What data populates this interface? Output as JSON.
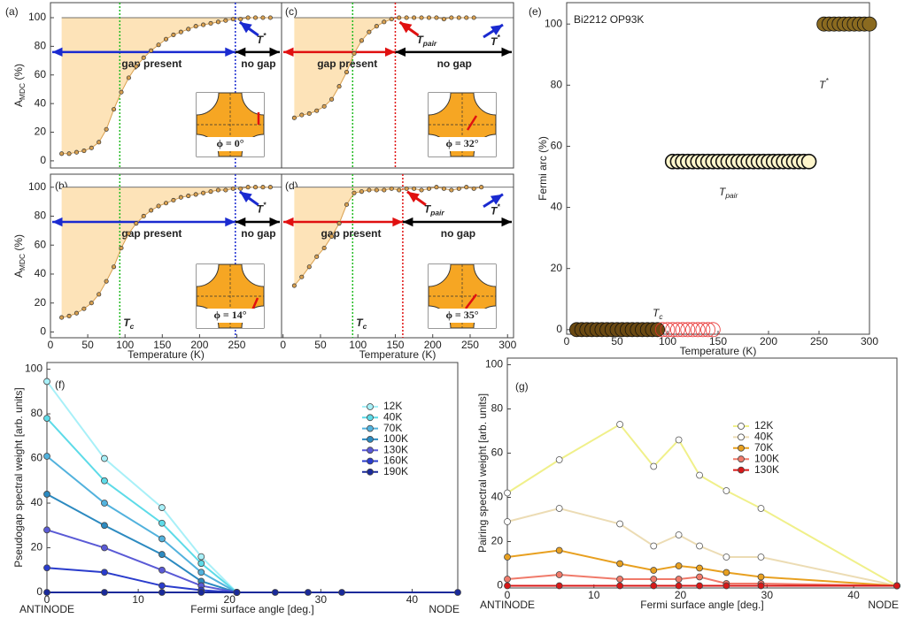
{
  "chart_data": [
    {
      "type": "line",
      "panel_label": "(a)",
      "ylabel": [
        "A",
        "MDC",
        " (%)"
      ],
      "x": [
        15,
        25,
        35,
        45,
        55,
        65,
        75,
        85,
        95,
        105,
        115,
        125,
        135,
        145,
        155,
        165,
        175,
        185,
        195,
        205,
        215,
        225,
        235,
        245,
        255,
        265,
        275,
        285,
        295
      ],
      "values": [
        5,
        5,
        6,
        7,
        9,
        13,
        22,
        36,
        48,
        58,
        66,
        72,
        77,
        81,
        85,
        88,
        90,
        92,
        94,
        95,
        96,
        97,
        98,
        99,
        99,
        100,
        100,
        100,
        100
      ],
      "color": "#d8a050",
      "shade_color": "#fde3b8",
      "xlim": [
        0,
        310
      ],
      "ylim": [
        -5,
        110.5
      ],
      "yticks": [
        0,
        20,
        40,
        60,
        80,
        100
      ],
      "tc": 93,
      "tc_color": "#22bb22",
      "cutoff": 248,
      "cutoff_color": "#1a2ad0",
      "cutoff_label": [
        "T",
        "*"
      ],
      "gap_label": "gap present",
      "gap_color": "#1a2ad0",
      "nogap_label": "no gap",
      "inset_label": "ϕ = 0°"
    },
    {
      "type": "line",
      "panel_label": "(c)",
      "x": [
        15,
        25,
        35,
        45,
        55,
        65,
        75,
        85,
        95,
        105,
        115,
        125,
        135,
        145,
        155,
        165,
        175,
        185,
        195,
        205,
        215,
        225,
        235,
        245,
        255
      ],
      "values": [
        30,
        32,
        33,
        35,
        38,
        43,
        52,
        62,
        75,
        84,
        90,
        94,
        97,
        99,
        100,
        100,
        100,
        100,
        100,
        100,
        99,
        100,
        100,
        100,
        100
      ],
      "color": "#d8a050",
      "shade_color": "#fde3b8",
      "xlim": [
        -2,
        308
      ],
      "ylim": [
        -5,
        110.5
      ],
      "tc": 93,
      "tc_color": "#22bb22",
      "cutoff": 150,
      "cutoff_color": "#e01010",
      "cutoff_label": [
        "T",
        "pair"
      ],
      "tstar_label": [
        "T",
        "*"
      ],
      "tstar_color": "#1a2ad0",
      "gap_label": "gap present",
      "gap_color": "#e01010",
      "nogap_label": "no gap",
      "inset_label": "ϕ = 32°"
    },
    {
      "type": "line",
      "panel_label": "(b)",
      "ylabel": [
        "A",
        "MDC",
        " (%)"
      ],
      "xlabel": "Temperature (K)",
      "x": [
        15,
        25,
        35,
        45,
        55,
        65,
        75,
        85,
        95,
        105,
        115,
        125,
        135,
        145,
        155,
        165,
        175,
        185,
        195,
        205,
        215,
        225,
        235,
        245,
        255,
        265,
        275,
        285,
        295
      ],
      "values": [
        10,
        11,
        13,
        16,
        20,
        26,
        35,
        45,
        58,
        68,
        75,
        80,
        84,
        87,
        89,
        91,
        93,
        94,
        95,
        96,
        97,
        98,
        98,
        99,
        99,
        100,
        100,
        100,
        100
      ],
      "color": "#d8a050",
      "shade_color": "#fde3b8",
      "xlim": [
        0,
        310
      ],
      "ylim": [
        -4,
        109
      ],
      "yticks": [
        0,
        20,
        40,
        60,
        80,
        100
      ],
      "xticks": [
        0,
        50,
        100,
        150,
        200,
        250
      ],
      "tc": 93,
      "tc_color": "#22bb22",
      "tc_label": [
        "T",
        "c"
      ],
      "cutoff": 248,
      "cutoff_color": "#1a2ad0",
      "cutoff_label": [
        "T",
        "*"
      ],
      "gap_label": "gap present",
      "gap_color": "#1a2ad0",
      "nogap_label": "no gap",
      "inset_label": "ϕ = 14°"
    },
    {
      "type": "line",
      "panel_label": "(d)",
      "xlabel": "Temperature (K)",
      "x": [
        15,
        25,
        35,
        45,
        55,
        65,
        75,
        85,
        95,
        105,
        115,
        125,
        135,
        145,
        155,
        165,
        175,
        185,
        195,
        205,
        215,
        225,
        235,
        245,
        255,
        265
      ],
      "values": [
        32,
        38,
        45,
        52,
        58,
        66,
        75,
        88,
        96,
        97,
        98,
        98,
        98,
        99,
        98,
        99,
        99,
        98,
        99,
        100,
        99,
        98,
        99,
        100,
        99,
        100
      ],
      "color": "#d8a050",
      "shade_color": "#fde3b8",
      "xlim": [
        -2,
        308
      ],
      "ylim": [
        -4,
        109
      ],
      "xticks": [
        0,
        50,
        100,
        150,
        200,
        250,
        300
      ],
      "tc": 93,
      "tc_color": "#22bb22",
      "tc_label": [
        "T",
        "c"
      ],
      "cutoff": 160,
      "cutoff_color": "#e01010",
      "cutoff_label": [
        "T",
        "pair"
      ],
      "tstar_label": [
        "T",
        "*"
      ],
      "tstar_color": "#1a2ad0",
      "gap_label": "gap present",
      "gap_color": "#e01010",
      "nogap_label": "no gap",
      "inset_label": "ϕ = 35°"
    },
    {
      "type": "scatter",
      "panel_label": "(e)",
      "title": "Bi2212 OP93K",
      "xlabel": "Temperature (K)",
      "ylabel": "Fermi arc (%)",
      "xlim": [
        0,
        300
      ],
      "ylim": [
        -1.5,
        107
      ],
      "xticks": [
        0,
        50,
        100,
        150,
        200,
        250,
        300
      ],
      "yticks": [
        0,
        20,
        40,
        60,
        80,
        100
      ],
      "series": [
        {
          "color": "#6b4a12",
          "marker": "filled",
          "x": [
            10,
            15,
            20,
            25,
            30,
            35,
            40,
            45,
            50,
            55,
            60,
            65,
            70,
            75,
            80,
            85,
            90
          ],
          "values": [
            0,
            0,
            0,
            0,
            0,
            0,
            0,
            0,
            0,
            0,
            0,
            0,
            0,
            0,
            0,
            0,
            0
          ]
        },
        {
          "color": "#e83030",
          "marker": "open",
          "x": [
            95,
            100,
            105,
            110,
            115,
            120,
            125,
            130,
            135,
            140,
            145
          ],
          "values": [
            0,
            0,
            0,
            0,
            0,
            0,
            0,
            0,
            0,
            0,
            0
          ]
        },
        {
          "color": "#f0b828",
          "marker": "ring",
          "x": [
            105,
            110,
            115,
            120,
            125,
            130,
            135,
            140,
            145,
            150,
            155,
            160,
            165,
            170,
            175,
            180,
            185,
            190,
            195,
            200,
            205,
            210,
            215,
            220,
            225,
            230,
            235,
            240
          ],
          "values": [
            55,
            55,
            55,
            55,
            55,
            55,
            55,
            55,
            55,
            55,
            55,
            55,
            55,
            55,
            55,
            55,
            55,
            55,
            55,
            55,
            55,
            55,
            55,
            55,
            55,
            55,
            55,
            55
          ]
        },
        {
          "color": "#8a6a20",
          "marker": "filled",
          "x": [
            255,
            260,
            265,
            270,
            275,
            280,
            285,
            290,
            295,
            300
          ],
          "values": [
            100,
            100,
            100,
            100,
            100,
            100,
            100,
            100,
            100,
            100
          ]
        }
      ],
      "labels": [
        {
          "text": [
            "T",
            "*"
          ],
          "color": "#1a2ad0"
        },
        {
          "text": [
            "T",
            "pair"
          ],
          "color": "#e01010"
        },
        {
          "text": [
            "T",
            "c"
          ],
          "color": "#22bb22"
        }
      ]
    },
    {
      "type": "line",
      "panel_label": "(f)",
      "xlabel": "Fermi surface angle [deg.]",
      "ylabel": "Pseudogap spectral weight [arb. units]",
      "x": [
        0,
        6.3,
        12.6,
        16.9,
        20.8,
        25,
        28.6,
        32.3,
        45
      ],
      "xlim": [
        0,
        45
      ],
      "ylim": [
        0,
        103
      ],
      "xticks": [
        0,
        10,
        20,
        30,
        40
      ],
      "yticks": [
        0,
        20,
        40,
        60,
        80,
        100
      ],
      "x_end_labels": [
        "ANTINODE",
        "NODE"
      ],
      "legend": "upper-right",
      "series": [
        {
          "name": "12K",
          "color": "#a8f0f8",
          "values": [
            94.5,
            60,
            38,
            16,
            0,
            null,
            null,
            null,
            null
          ]
        },
        {
          "name": "40K",
          "color": "#5ddbe8",
          "values": [
            78,
            50,
            31,
            13,
            0,
            null,
            null,
            null,
            null
          ]
        },
        {
          "name": "70K",
          "color": "#52b2dd",
          "values": [
            61,
            40,
            24,
            9,
            0,
            null,
            null,
            null,
            null
          ]
        },
        {
          "name": "100K",
          "color": "#2c8ac0",
          "values": [
            44,
            30,
            17,
            5,
            0,
            null,
            null,
            null,
            null
          ]
        },
        {
          "name": "130K",
          "color": "#5a5ad6",
          "values": [
            28,
            20,
            10,
            3,
            0,
            null,
            null,
            null,
            null
          ]
        },
        {
          "name": "160K",
          "color": "#2a3ccc",
          "values": [
            11,
            9,
            3,
            1,
            0,
            null,
            null,
            null,
            null
          ]
        },
        {
          "name": "190K",
          "color": "#1a2a9a",
          "values": [
            0,
            0,
            0,
            0,
            0,
            0,
            0,
            0,
            0
          ]
        }
      ]
    },
    {
      "type": "line",
      "panel_label": "(g)",
      "xlabel": "Fermi surface angle [deg.]",
      "ylabel": "Pairing spectral weight [arb. units]",
      "x": [
        0,
        6,
        13,
        16.9,
        19.8,
        22.2,
        25.3,
        29.3,
        45
      ],
      "xlim": [
        0,
        45
      ],
      "ylim": [
        -1,
        103
      ],
      "xticks": [
        0,
        10,
        20,
        30,
        40
      ],
      "yticks": [
        0,
        20,
        40,
        60,
        80,
        100
      ],
      "x_end_labels": [
        "ANTINODE",
        "NODE"
      ],
      "legend": "upper-right",
      "series": [
        {
          "name": "12K",
          "color": "#f0f08a",
          "marker": "open",
          "values": [
            42,
            57,
            73,
            54,
            66,
            50,
            43,
            35,
            0
          ]
        },
        {
          "name": "40K",
          "color": "#ecdcb4",
          "marker": "open",
          "values": [
            29,
            35,
            28,
            18,
            23,
            18,
            13,
            13,
            0
          ]
        },
        {
          "name": "70K",
          "color": "#e8a020",
          "values": [
            13,
            16,
            10,
            7,
            9,
            8,
            6,
            4,
            0
          ]
        },
        {
          "name": "100K",
          "color": "#f07a6a",
          "values": [
            3,
            5,
            3,
            3,
            3,
            4,
            1,
            1,
            0
          ]
        },
        {
          "name": "130K",
          "color": "#d81818",
          "values": [
            0,
            0,
            0,
            0,
            0,
            0,
            0,
            0,
            0
          ]
        }
      ]
    }
  ]
}
